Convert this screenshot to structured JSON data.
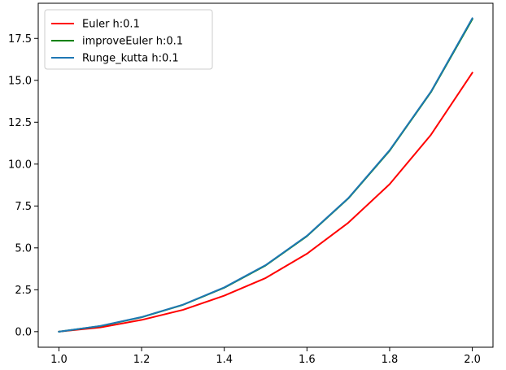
{
  "chart_data": {
    "type": "line",
    "title": "",
    "xlabel": "",
    "ylabel": "",
    "x": [
      1.0,
      1.1,
      1.2,
      1.3,
      1.4,
      1.5,
      1.6,
      1.7,
      1.8,
      1.9,
      2.0
    ],
    "xlim": [
      0.95,
      2.05
    ],
    "ylim": [
      -0.93,
      19.6
    ],
    "xticks": [
      1.0,
      1.2,
      1.4,
      1.6,
      1.8,
      2.0
    ],
    "xtick_labels": [
      "1.0",
      "1.2",
      "1.4",
      "1.6",
      "1.8",
      "2.0"
    ],
    "yticks": [
      0.0,
      2.5,
      5.0,
      7.5,
      10.0,
      12.5,
      15.0,
      17.5
    ],
    "ytick_labels": [
      "0.0",
      "2.5",
      "5.0",
      "7.5",
      "10.0",
      "12.5",
      "15.0",
      "17.5"
    ],
    "grid": false,
    "legend_position": "top-left",
    "series": [
      {
        "name": "Euler h:0.1",
        "color": "#ff0000",
        "values": [
          0.0,
          0.25,
          0.7,
          1.3,
          2.15,
          3.2,
          4.65,
          6.5,
          8.8,
          11.75,
          15.45
        ]
      },
      {
        "name": "improveEuler h:0.1",
        "color": "#008000",
        "values": [
          0.0,
          0.33,
          0.86,
          1.6,
          2.62,
          3.95,
          5.7,
          7.95,
          10.8,
          14.3,
          18.65
        ]
      },
      {
        "name": "Runge_kutta h:0.1",
        "color": "#1f77b4",
        "values": [
          0.0,
          0.34,
          0.87,
          1.61,
          2.64,
          3.97,
          5.72,
          7.97,
          10.83,
          14.33,
          18.7
        ]
      }
    ]
  }
}
